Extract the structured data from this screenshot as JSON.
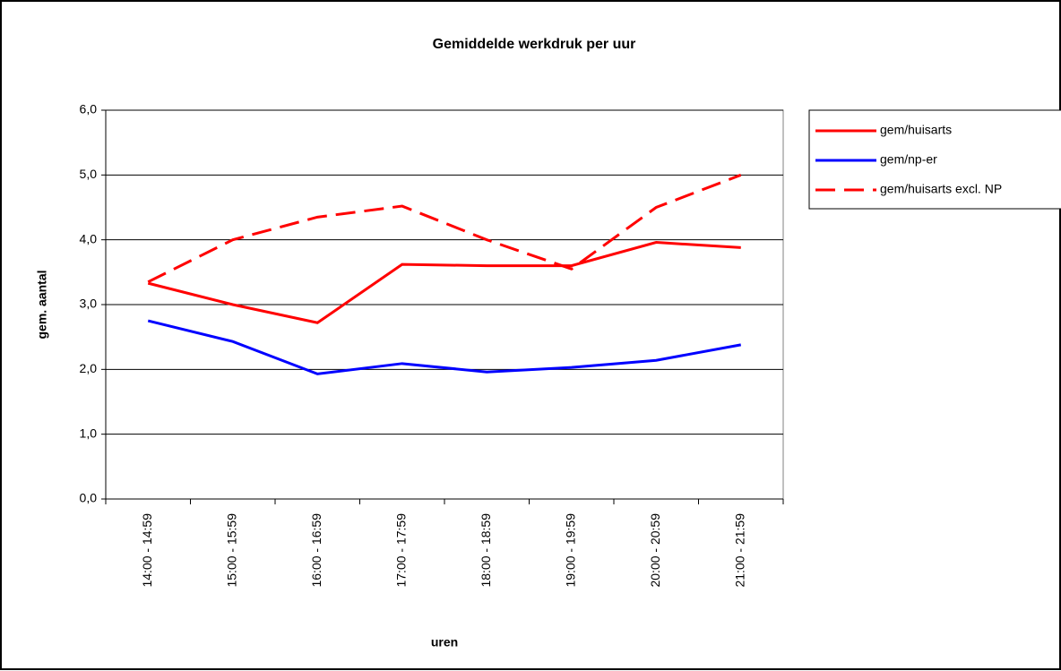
{
  "chart_data": {
    "type": "line",
    "title": "Gemiddelde werkdruk per uur",
    "x_label": "uren",
    "y_label": "gem. aantal",
    "categories": [
      "14:00 - 14:59",
      "15:00 - 15:59",
      "16:00 - 16:59",
      "17:00 - 17:59",
      "18:00 - 18:59",
      "19:00 - 19:59",
      "20:00 - 20:59",
      "21:00 - 21:59"
    ],
    "series": [
      {
        "name": "gem/huisarts",
        "color": "#ff0000",
        "dash": false,
        "values": [
          3.33,
          3.0,
          2.72,
          3.62,
          3.6,
          3.6,
          3.96,
          3.88
        ]
      },
      {
        "name": "gem/np-er",
        "color": "#0000ff",
        "dash": false,
        "values": [
          2.75,
          2.43,
          1.93,
          2.09,
          1.96,
          2.03,
          2.14,
          2.38
        ]
      },
      {
        "name": "gem/huisarts excl. NP",
        "color": "#ff0000",
        "dash": true,
        "values": [
          3.35,
          4.0,
          4.35,
          4.52,
          4.0,
          3.55,
          4.5,
          5.0
        ]
      }
    ],
    "ylim": [
      0,
      6
    ],
    "yticks": [
      {
        "value": 0,
        "label": "0,0"
      },
      {
        "value": 1,
        "label": "1,0"
      },
      {
        "value": 2,
        "label": "2,0"
      },
      {
        "value": 3,
        "label": "3,0"
      },
      {
        "value": 4,
        "label": "4,0"
      },
      {
        "value": 5,
        "label": "5,0"
      },
      {
        "value": 6,
        "label": "6,0"
      }
    ],
    "grid": true,
    "legend": "right"
  }
}
